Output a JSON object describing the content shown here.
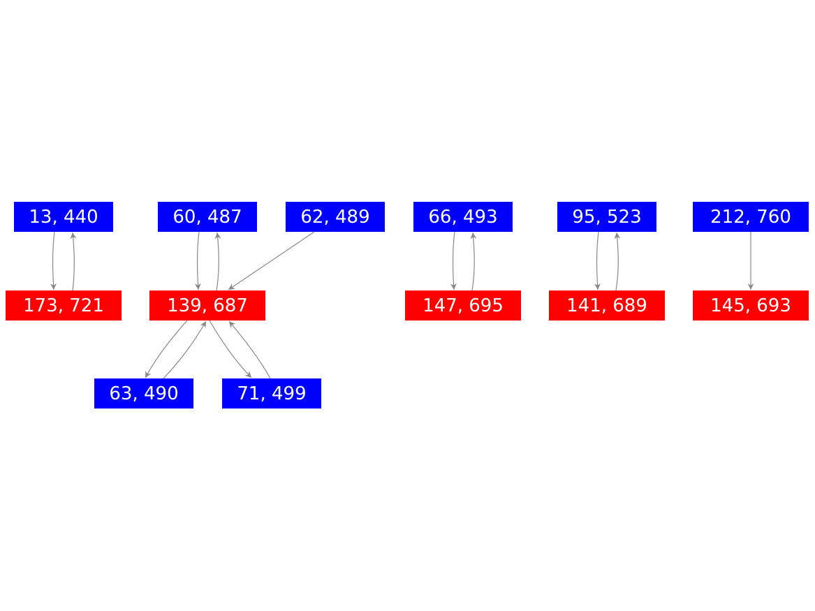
{
  "colors": {
    "source_node": "#0000ff",
    "target_node": "#ff0000",
    "edge": "#888888",
    "label": "#ffffff"
  },
  "nodes": {
    "n13_440": "13, 440",
    "n60_487": "60, 487",
    "n62_489": "62, 489",
    "n66_493": "66, 493",
    "n95_523": "95, 523",
    "n212_760": "212, 760",
    "n173_721": "173, 721",
    "n139_687": "139, 687",
    "n147_695": "147, 695",
    "n141_689": "141, 689",
    "n145_693": "145, 693",
    "n63_490": "63, 490",
    "n71_499": "71, 499"
  },
  "edges": [
    {
      "from": "13, 440",
      "to": "173, 721"
    },
    {
      "from": "173, 721",
      "to": "13, 440"
    },
    {
      "from": "60, 487",
      "to": "139, 687"
    },
    {
      "from": "139, 687",
      "to": "60, 487"
    },
    {
      "from": "62, 489",
      "to": "139, 687"
    },
    {
      "from": "139, 687",
      "to": "63, 490"
    },
    {
      "from": "63, 490",
      "to": "139, 687"
    },
    {
      "from": "139, 687",
      "to": "71, 499"
    },
    {
      "from": "71, 499",
      "to": "139, 687"
    },
    {
      "from": "66, 493",
      "to": "147, 695"
    },
    {
      "from": "147, 695",
      "to": "66, 493"
    },
    {
      "from": "95, 523",
      "to": "141, 689"
    },
    {
      "from": "141, 689",
      "to": "95, 523"
    },
    {
      "from": "212, 760",
      "to": "145, 693"
    }
  ]
}
